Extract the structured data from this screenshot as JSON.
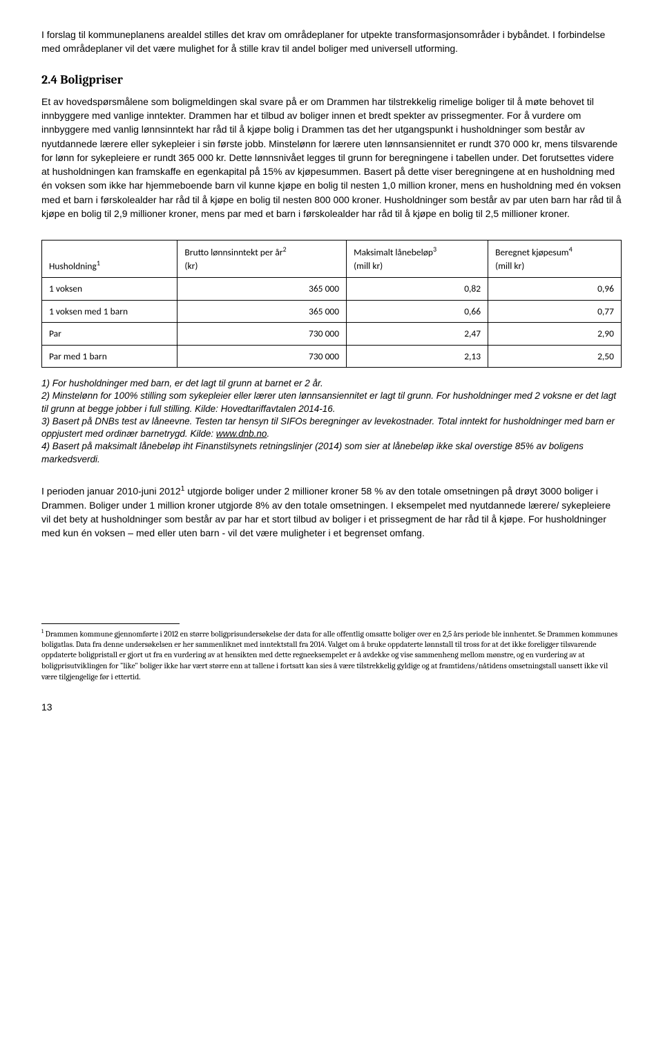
{
  "intro": {
    "p1": "I forslag til kommuneplanens arealdel stilles det krav om områdeplaner for utpekte transformasjonsområder i bybåndet. I forbindelse med områdeplaner vil det være mulighet for å stille krav til andel boliger med universell utforming."
  },
  "section": {
    "heading": "2.4 Boligpriser",
    "body": "Et av hovedspørsmålene som boligmeldingen skal svare på er om Drammen har tilstrekkelig rimelige boliger til å møte behovet til innbyggere med vanlige inntekter. Drammen har et tilbud av boliger innen et bredt spekter av prissegmenter. For å vurdere om innbyggere med vanlig lønnsinntekt har råd til å kjøpe bolig i Drammen tas det her utgangspunkt i husholdninger som består av nyutdannede lærere eller sykepleier i sin første jobb. Minstelønn for lærere uten lønnsansiennitet er rundt 370 000 kr, mens tilsvarende for lønn for sykepleiere er rundt 365 000 kr. Dette lønnsnivået legges til grunn for beregningene i tabellen under. Det forutsettes videre at husholdningen kan framskaffe en egenkapital på 15% av kjøpesummen. Basert på dette viser beregningene at en husholdning med én voksen som ikke har hjemmeboende barn vil kunne kjøpe en bolig til nesten 1,0 million kroner, mens en husholdning med én voksen med et barn i førskolealder har råd til å kjøpe en bolig til nesten 800 000 kroner. Husholdninger som består av par uten barn har råd til å kjøpe en bolig til 2,9 millioner kroner, mens par med et barn i førskolealder har råd til å kjøpe en bolig til 2,5 millioner kroner."
  },
  "table": {
    "columns": [
      {
        "label": "Husholdning",
        "sup": "1",
        "align": "left"
      },
      {
        "label": "Brutto lønnsinntekt per år",
        "sup": "2",
        "unit": "(kr)",
        "align": "right"
      },
      {
        "label": "Maksimalt lånebeløp",
        "sup": "3",
        "unit": "(mill kr)",
        "align": "right"
      },
      {
        "label": "Beregnet kjøpesum",
        "sup": "4",
        "unit": "(mill kr)",
        "align": "right"
      }
    ],
    "rows": [
      {
        "label": "1 voksen",
        "c1": "365 000",
        "c2": "0,82",
        "c3": "0,96"
      },
      {
        "label": "1 voksen med 1 barn",
        "c1": "365 000",
        "c2": "0,66",
        "c3": "0,77"
      },
      {
        "label": "Par",
        "c1": "730 000",
        "c2": "2,47",
        "c3": "2,90"
      },
      {
        "label": "Par med 1 barn",
        "c1": "730 000",
        "c2": "2,13",
        "c3": "2,50"
      }
    ],
    "border_color": "#000000",
    "font_family": "Calibri",
    "font_size_pt": 10
  },
  "tablenotes": {
    "n1": "1) For husholdninger med barn, er det lagt til grunn at barnet er 2 år.",
    "n2": "2) Minstelønn for 100% stilling som sykepleier eller lærer uten lønnsansiennitet er lagt til grunn. For husholdninger med 2 voksne er det lagt til grunn at begge jobber i full stilling. Kilde: Hovedtariffavtalen 2014-16.",
    "n3a": "3) Basert på DNBs test av låneevne. Testen tar hensyn til SIFOs beregninger av levekostnader. Total inntekt for husholdninger med barn er oppjustert med ordinær barnetrygd. Kilde: ",
    "n3link": "www.dnb.no",
    "n3b": ".",
    "n4": "4) Basert på maksimalt lånebeløp iht Finanstilsynets retningslinjer (2014) som sier at lånebeløp ikke skal overstige 85% av boligens markedsverdi."
  },
  "closing": {
    "p1a": "I perioden januar 2010-juni 2012",
    "p1sup": "1",
    "p1b": " utgjorde boliger under 2 millioner kroner 58 % av den totale omsetningen på drøyt 3000 boliger i Drammen. Boliger under 1 million kroner utgjorde 8% av den totale omsetningen. I eksempelet med nyutdannede lærere/ sykepleiere vil det bety at husholdninger som består av par har et stort tilbud av boliger i et prissegment de har råd til å kjøpe. For husholdninger med kun én voksen – med eller uten barn - vil det være muligheter i et begrenset omfang."
  },
  "endnote": {
    "sup": "1",
    "text": " Drammen kommune gjennomførte i 2012 en større boligprisundersøkelse der data for alle offentlig omsatte boliger over en 2,5 års periode ble innhentet. Se Drammen kommunes boligatlas. Data fra denne undersøkelsen er her sammenliknet med inntektstall fra 2014. Valget om å bruke oppdaterte lønnstall til tross for at det ikke foreligger tilsvarende oppdaterte boligpristall er gjort ut fra en vurdering av at hensikten med dette regneeksempelet er å avdekke og vise sammenheng mellom mønstre, og en vurdering av at boligprisutviklingen for \"like\" boliger ikke har vært større enn at tallene i fortsatt kan sies å være tilstrekkelig gyldige og at framtidens/nåtidens omsetningstall uansett ikke vil være tilgjengelige før i ettertid."
  },
  "page_number": "13",
  "colors": {
    "text": "#000000",
    "background": "#ffffff",
    "table_border": "#000000",
    "link": "#000000"
  },
  "typography": {
    "body_font": "Arial",
    "body_size_pt": 11,
    "heading_font": "Cambria",
    "heading_size_pt": 14,
    "table_font": "Calibri",
    "endnote_font": "Cambria",
    "endnote_size_pt": 9
  }
}
